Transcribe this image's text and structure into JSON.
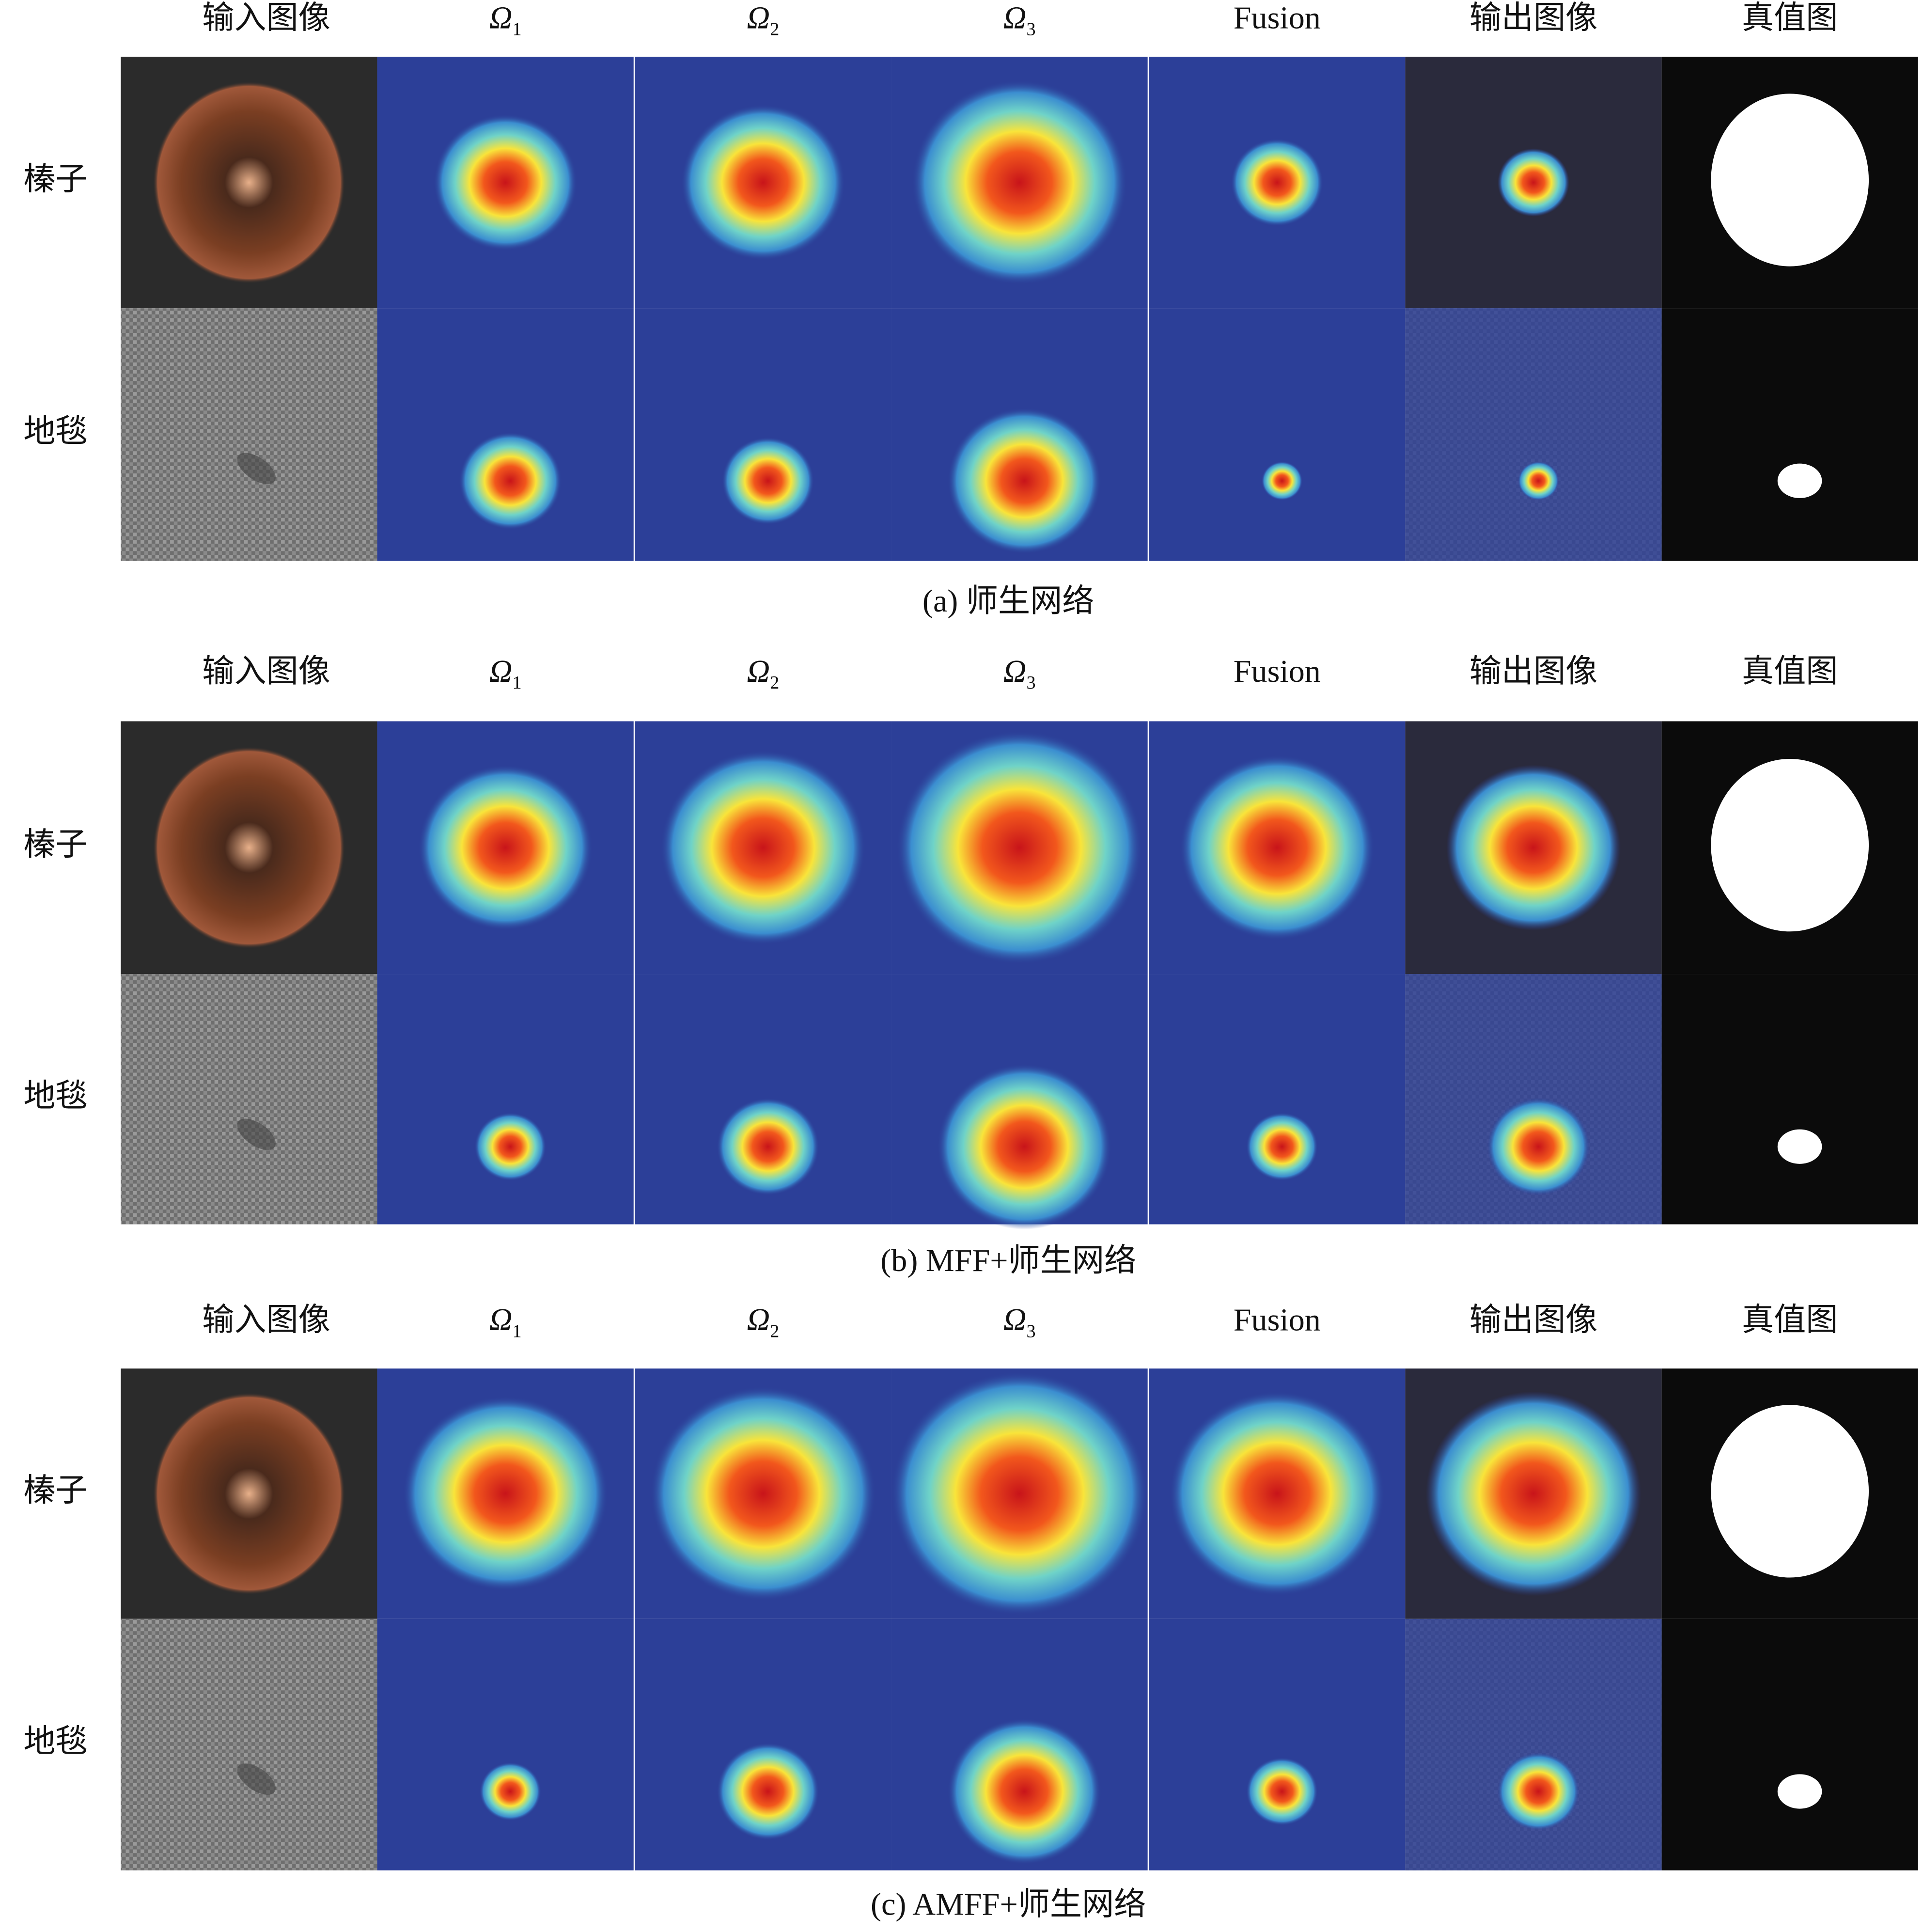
{
  "panels": [
    {
      "caption": "(a) 师生网络",
      "columns": [
        "输入图像",
        {
          "symbol": "Ω",
          "subscript": "1"
        },
        {
          "symbol": "Ω",
          "subscript": "2"
        },
        {
          "symbol": "Ω",
          "subscript": "3"
        },
        "Fusion",
        "输出图像",
        "真值图"
      ],
      "rows": [
        "榛子",
        "地毯"
      ]
    },
    {
      "caption": "(b) MFF+师生网络",
      "columns": [
        "输入图像",
        {
          "symbol": "Ω",
          "subscript": "1"
        },
        {
          "symbol": "Ω",
          "subscript": "2"
        },
        {
          "symbol": "Ω",
          "subscript": "3"
        },
        "Fusion",
        "输出图像",
        "真值图"
      ],
      "rows": [
        "榛子",
        "地毯"
      ]
    },
    {
      "caption": "(c) AMFF+师生网络",
      "columns": [
        "输入图像",
        {
          "symbol": "Ω",
          "subscript": "1"
        },
        {
          "symbol": "Ω",
          "subscript": "2"
        },
        {
          "symbol": "Ω",
          "subscript": "3"
        },
        "Fusion",
        "输出图像",
        "真值图"
      ],
      "rows": [
        "榛子",
        "地毯"
      ]
    }
  ]
}
